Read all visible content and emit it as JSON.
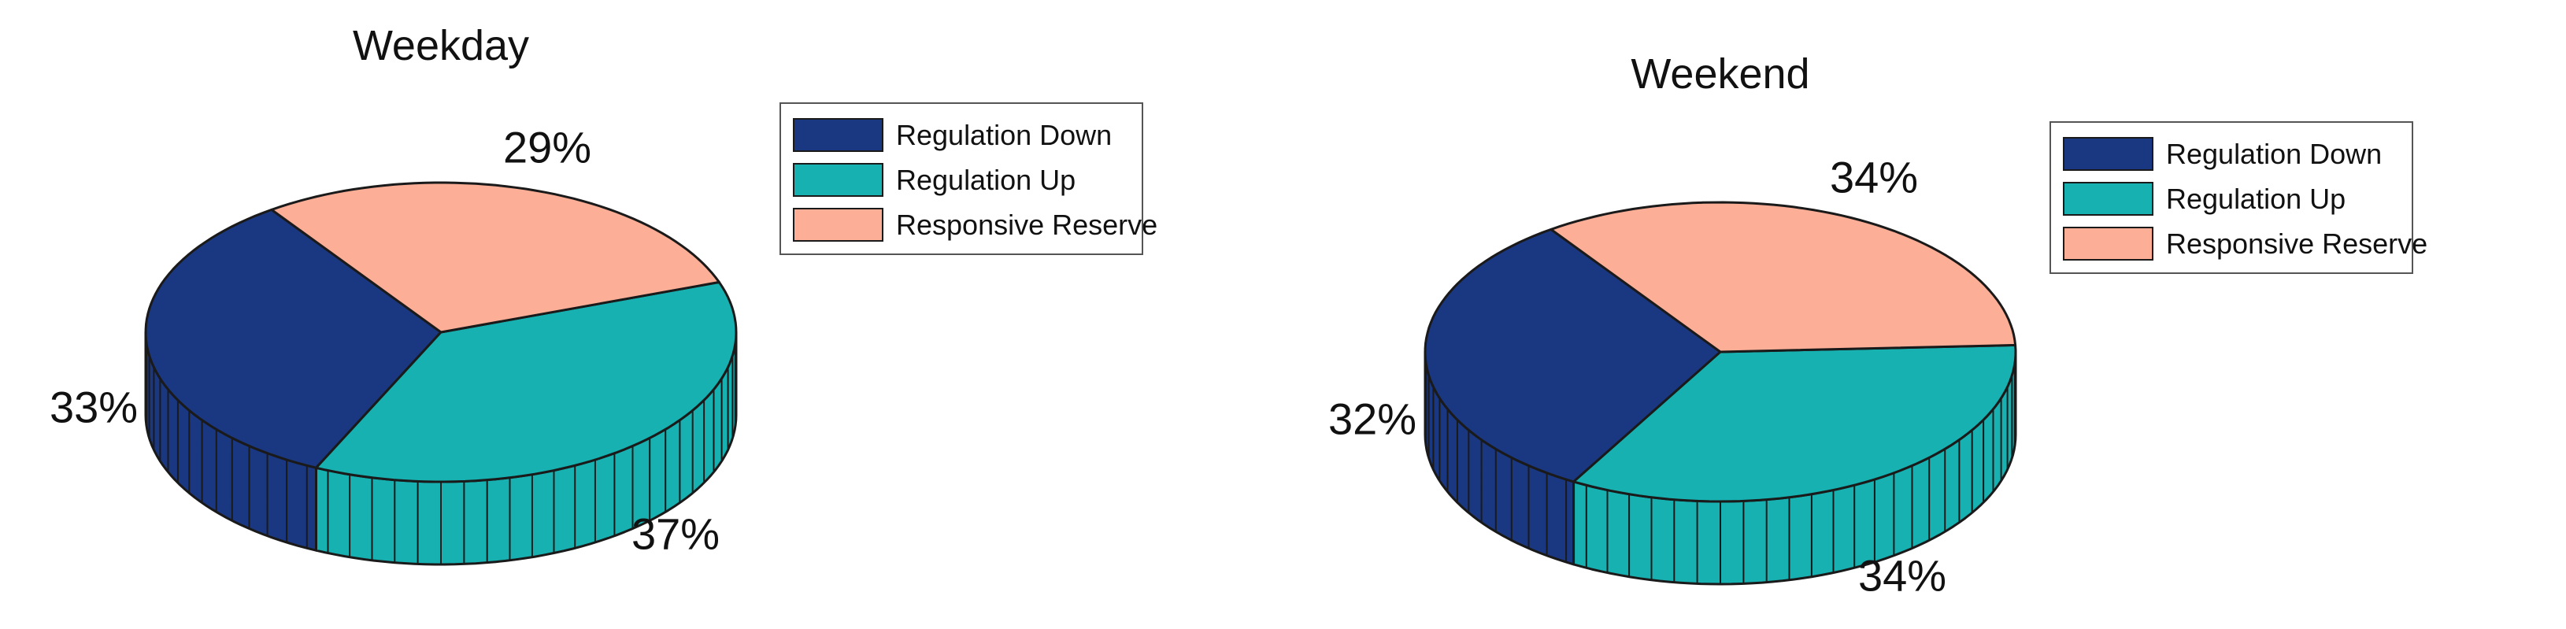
{
  "figure": {
    "background": "#ffffff",
    "outline_color": "#1a1a1a",
    "legend_border_color": "#555555",
    "text_color": "#111111"
  },
  "chart_data": [
    {
      "type": "pie",
      "style": "pie3d",
      "title": "Weekday",
      "categories": [
        "Regulation Down",
        "Regulation Up",
        "Responsive Reserve"
      ],
      "values": [
        33,
        37,
        29
      ],
      "slice_labels": [
        "33%",
        "37%",
        "29%"
      ],
      "colors": [
        "#1a3781",
        "#16b1b0",
        "#fcae97"
      ],
      "legend_position": "upper right",
      "grid": false
    },
    {
      "type": "pie",
      "style": "pie3d",
      "title": "Weekend",
      "categories": [
        "Regulation Down",
        "Regulation Up",
        "Responsive Reserve"
      ],
      "values": [
        32,
        34,
        34
      ],
      "slice_labels": [
        "32%",
        "34%",
        "34%"
      ],
      "colors": [
        "#1a3781",
        "#16b1b0",
        "#fcae97"
      ],
      "legend_position": "upper right",
      "grid": false
    }
  ]
}
